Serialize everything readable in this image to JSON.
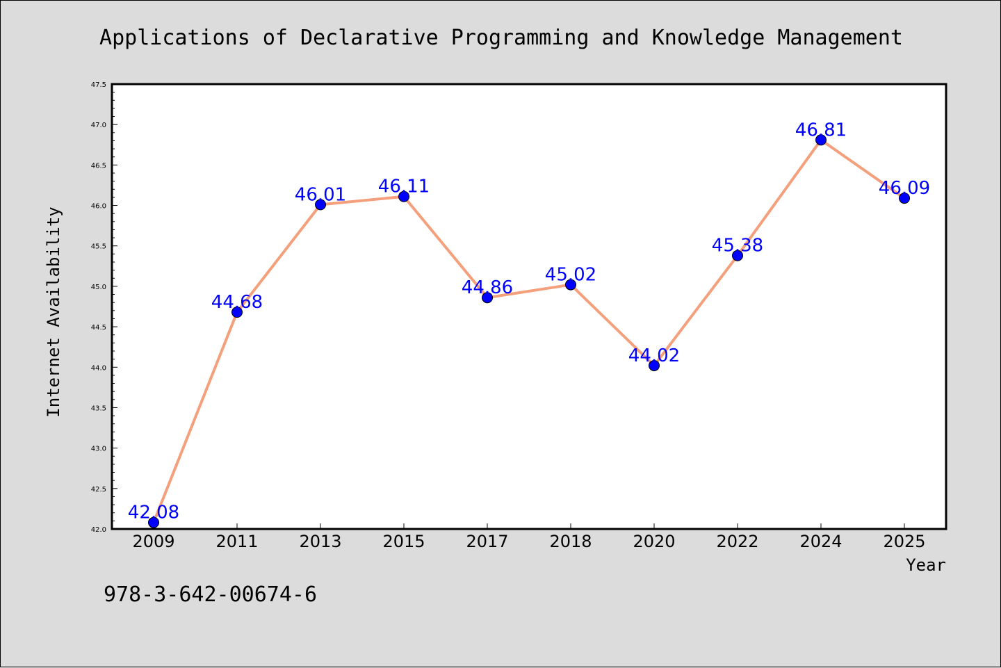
{
  "colors": {
    "background": "#dcdcdc",
    "plot_area": "#ffffff",
    "line": "#f4a07c",
    "marker": "#0000ff",
    "data_label": "#0000ff"
  },
  "footer_text": "978-3-642-00674-6",
  "chart_data": {
    "type": "line",
    "title": "Applications of Declarative Programming and Knowledge Management",
    "xlabel": "Year",
    "ylabel": "Internet Availability",
    "categories": [
      "2009",
      "2011",
      "2013",
      "2015",
      "2017",
      "2018",
      "2020",
      "2022",
      "2024",
      "2025"
    ],
    "series": [
      {
        "values": [
          42.08,
          44.68,
          46.01,
          46.11,
          44.86,
          45.02,
          44.02,
          45.38,
          46.81,
          46.09
        ]
      }
    ],
    "data_labels": [
      "42.08",
      "44.68",
      "46.01",
      "46.11",
      "44.86",
      "45.02",
      "44.02",
      "45.38",
      "46.81",
      "46.09"
    ],
    "ylim": [
      42.0,
      47.5
    ],
    "yticks": [
      "42.0",
      "42.5",
      "43.0",
      "43.5",
      "44.0",
      "44.5",
      "45.0",
      "45.5",
      "46.0",
      "46.5",
      "47.0",
      "47.5"
    ],
    "grid": false,
    "legend": "none"
  }
}
